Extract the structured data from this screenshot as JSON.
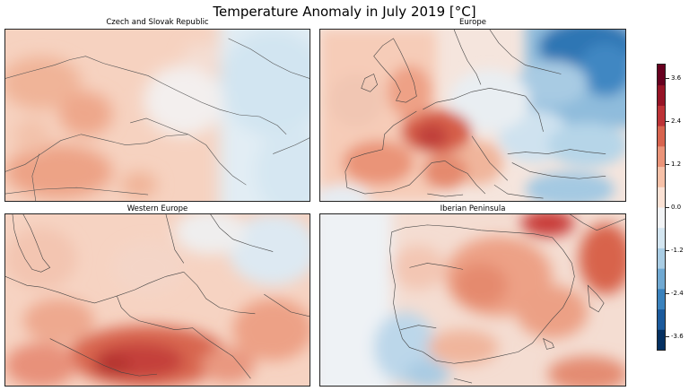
{
  "title": "Temperature Anomaly in July 2019 [°C]",
  "panels": [
    {
      "id": "czech",
      "title": "Czech and Slovak Republic"
    },
    {
      "id": "europe",
      "title": "Europe"
    },
    {
      "id": "western",
      "title": "Western Europe"
    },
    {
      "id": "iberia",
      "title": "Iberian Peninsula"
    }
  ],
  "colorbar": {
    "min": -4.0,
    "max": 4.0,
    "ticks": [
      "3.6",
      "2.4",
      "1.2",
      "0.0",
      "-1.2",
      "-2.4",
      "-3.6"
    ],
    "tick_values": [
      3.6,
      2.4,
      1.2,
      0.0,
      -1.2,
      -2.4,
      -3.6
    ],
    "colors": [
      "#053061",
      "#1b5a9c",
      "#3a82bd",
      "#70a9d2",
      "#a9cde4",
      "#d4e6f1",
      "#f2f4f6",
      "#fbe2d5",
      "#f7c1a8",
      "#eb9479",
      "#d8644f",
      "#bd3337",
      "#961426",
      "#67001f"
    ]
  }
}
